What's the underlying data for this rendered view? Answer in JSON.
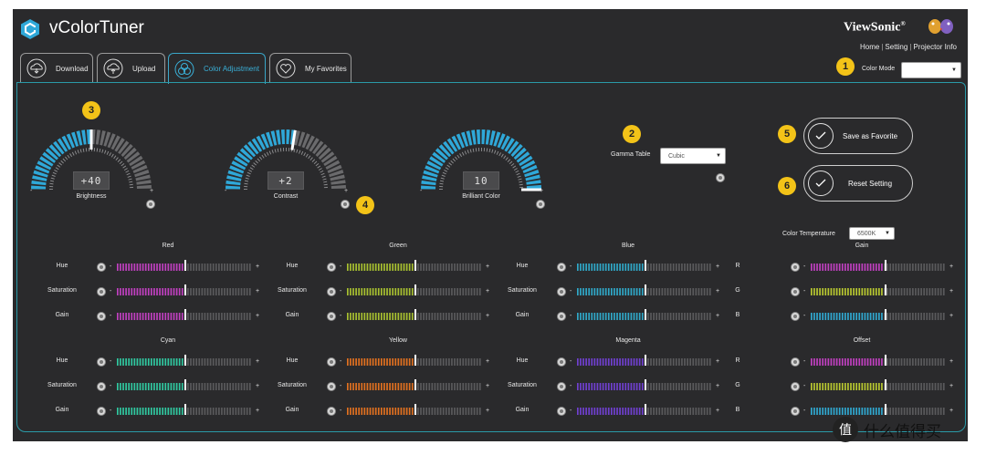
{
  "app": {
    "title": "vColorTuner",
    "brand": "ViewSonic",
    "brand_mark": "®"
  },
  "top_links": [
    "Home",
    "Setting",
    "Projector Info"
  ],
  "tabs": [
    {
      "label": "Download",
      "icon": "cloud-download-icon",
      "active": false
    },
    {
      "label": "Upload",
      "icon": "cloud-upload-icon",
      "active": false
    },
    {
      "label": "Color Adjustment",
      "icon": "color-wheel-icon",
      "active": true
    },
    {
      "label": "My Favorites",
      "icon": "heart-icon",
      "active": false
    }
  ],
  "color_mode": {
    "label": "Color Mode",
    "value": "",
    "badge": "1"
  },
  "gamma": {
    "label": "Gamma Table",
    "value": "Cubic",
    "badge": "2"
  },
  "gauges": [
    {
      "label": "Brightness",
      "display": "+40",
      "fraction": 0.5,
      "badge": "3"
    },
    {
      "label": "Contrast",
      "display": "+2",
      "fraction": 0.55,
      "badge": "4"
    },
    {
      "label": "Brilliant Color",
      "display": "10",
      "fraction": 1.0,
      "badge": ""
    }
  ],
  "gauge_minus": "-",
  "gauge_plus": "+",
  "buttons": {
    "save_favorite": {
      "label": "Save as Favorite",
      "badge": "5"
    },
    "reset_setting": {
      "label": "Reset Setting",
      "badge": "6"
    }
  },
  "color_temperature": {
    "label": "Color Temperature",
    "value": "6500K"
  },
  "slider_sign": {
    "minus": "-",
    "plus": "+"
  },
  "color_groups": [
    {
      "title": "Red",
      "color": "#c040c0",
      "rows": [
        {
          "label": "Hue",
          "fraction": 0.5
        },
        {
          "label": "Saturation",
          "fraction": 0.5
        },
        {
          "label": "Gain",
          "fraction": 0.5
        }
      ]
    },
    {
      "title": "Green",
      "color": "#a8c030",
      "rows": [
        {
          "label": "Hue",
          "fraction": 0.5
        },
        {
          "label": "Saturation",
          "fraction": 0.5
        },
        {
          "label": "Gain",
          "fraction": 0.5
        }
      ]
    },
    {
      "title": "Blue",
      "color": "#30a8c8",
      "rows": [
        {
          "label": "Hue",
          "fraction": 0.5
        },
        {
          "label": "Saturation",
          "fraction": 0.5
        },
        {
          "label": "Gain",
          "fraction": 0.5
        }
      ]
    },
    {
      "title": "Gain",
      "color": "#c040c0",
      "rows": [
        {
          "label": "R",
          "fraction": 0.55,
          "color": "#c040c0"
        },
        {
          "label": "G",
          "fraction": 0.55,
          "color": "#b8c830"
        },
        {
          "label": "B",
          "fraction": 0.55,
          "color": "#30a8d0"
        }
      ]
    },
    {
      "title": "Cyan",
      "color": "#30c8a0",
      "rows": [
        {
          "label": "Hue",
          "fraction": 0.5
        },
        {
          "label": "Saturation",
          "fraction": 0.5
        },
        {
          "label": "Gain",
          "fraction": 0.5
        }
      ]
    },
    {
      "title": "Yellow",
      "color": "#e07020",
      "rows": [
        {
          "label": "Hue",
          "fraction": 0.5
        },
        {
          "label": "Saturation",
          "fraction": 0.5
        },
        {
          "label": "Gain",
          "fraction": 0.5
        }
      ]
    },
    {
      "title": "Magenta",
      "color": "#7040d0",
      "rows": [
        {
          "label": "Hue",
          "fraction": 0.5
        },
        {
          "label": "Saturation",
          "fraction": 0.5
        },
        {
          "label": "Gain",
          "fraction": 0.5
        }
      ]
    },
    {
      "title": "Offset",
      "color": "#c040c0",
      "rows": [
        {
          "label": "R",
          "fraction": 0.55,
          "color": "#c040c0"
        },
        {
          "label": "G",
          "fraction": 0.55,
          "color": "#b8c830"
        },
        {
          "label": "B",
          "fraction": 0.55,
          "color": "#30a8d0"
        }
      ]
    }
  ],
  "colors": {
    "accent": "#2fa8d8",
    "badge": "#f3c318",
    "background": "#2a2a2c"
  },
  "watermark": "值 什么值得买"
}
